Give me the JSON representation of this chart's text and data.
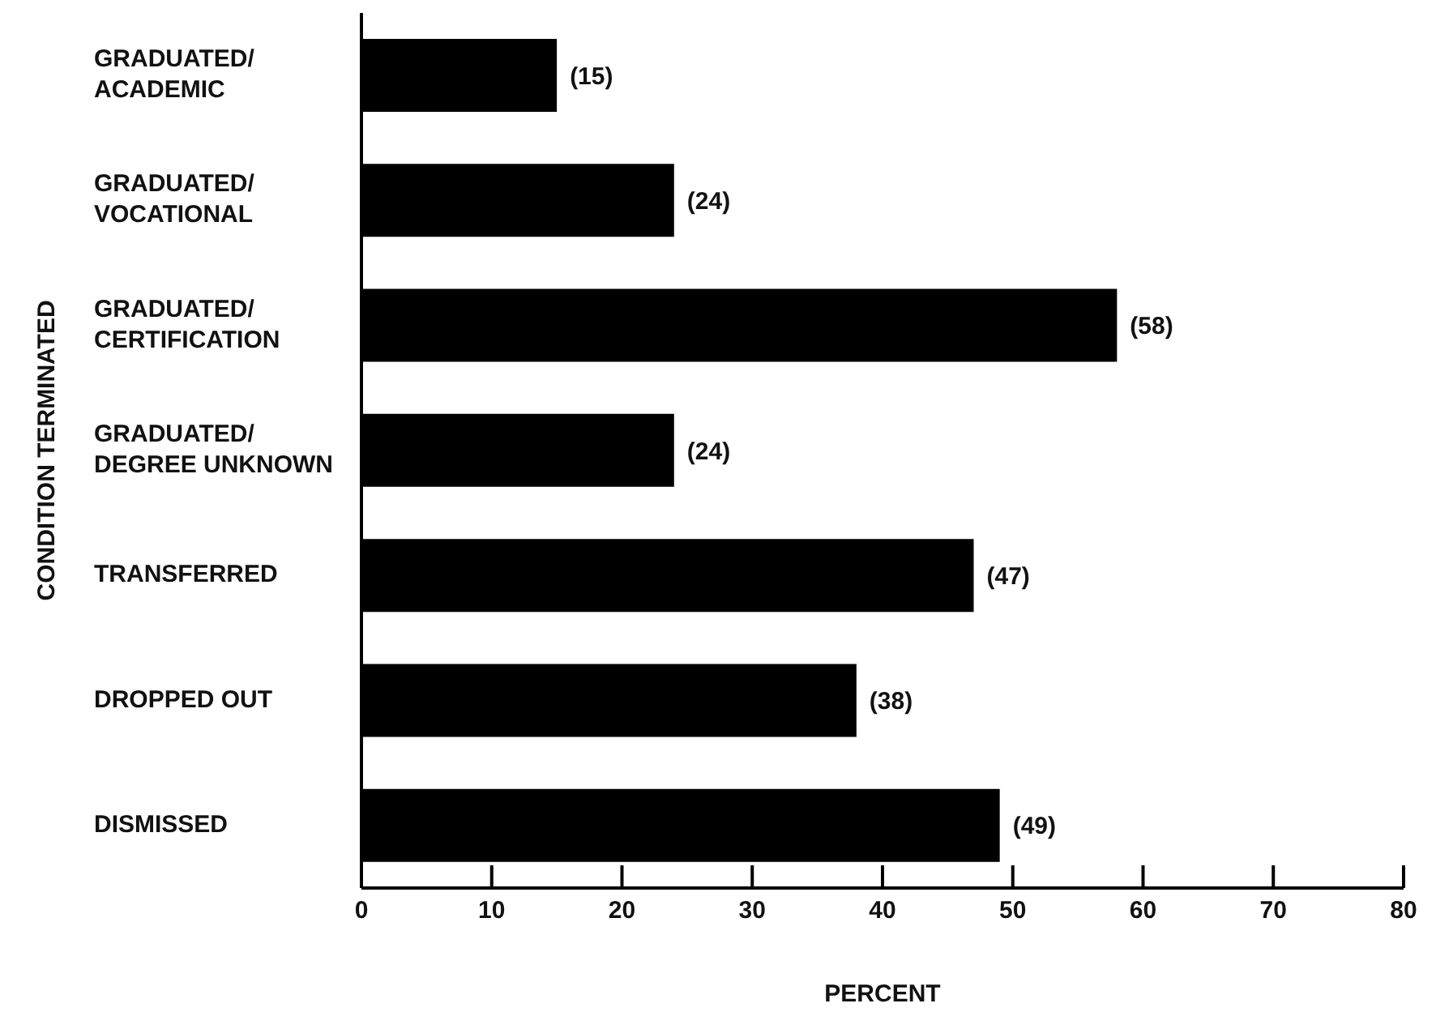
{
  "chart_data": {
    "type": "bar",
    "orientation": "horizontal",
    "xlabel": "PERCENT",
    "ylabel": "CONDITION TERMINATED",
    "categories": [
      "GRADUATED/ ACADEMIC",
      "GRADUATED/ VOCATIONAL",
      "GRADUATED/ CERTIFICATION",
      "GRADUATED/ DEGREE UNKNOWN",
      "TRANSFERRED",
      "DROPPED OUT",
      "DISMISSED"
    ],
    "values": [
      15,
      24,
      58,
      24,
      47,
      38,
      49
    ],
    "color": "#000000",
    "value_labels": [
      "(15)",
      "(24)",
      "(58)",
      "(24)",
      "(47)",
      "(38)",
      "(49)"
    ],
    "xlim": [
      0,
      80
    ],
    "xticks": [
      0,
      10,
      20,
      30,
      40,
      50,
      60,
      70,
      80
    ],
    "grid": false,
    "legend": false
  }
}
